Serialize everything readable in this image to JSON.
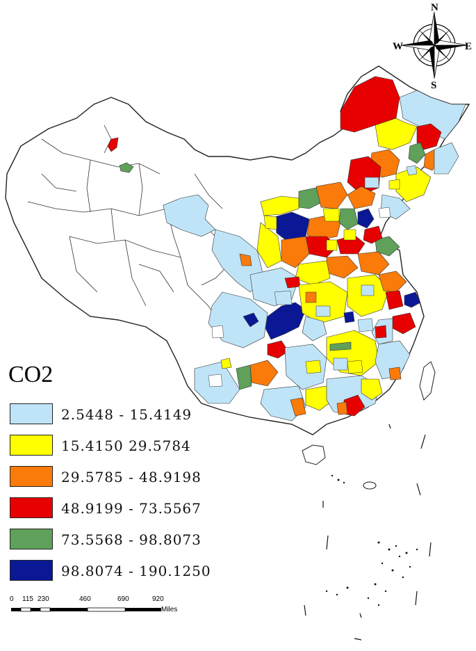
{
  "legend": {
    "title": "CO2",
    "classes": [
      {
        "range": "2.5448 - 15.4149",
        "color": "#bfe4f7"
      },
      {
        "range": "15.4150 29.5784",
        "color": "#ffff00"
      },
      {
        "range": "29.5785 - 48.9198",
        "color": "#fa7a0a"
      },
      {
        "range": "48.9199 - 73.5567",
        "color": "#e60000"
      },
      {
        "range": "73.5568 - 98.8073",
        "color": "#5fa05a"
      },
      {
        "range": "98.8074 - 190.1250",
        "color": "#0a1896"
      }
    ]
  },
  "compass": {
    "north": "N",
    "south": "S",
    "east": "E",
    "west": "W"
  },
  "scale": {
    "ticks": [
      "0",
      "115",
      "230",
      "460",
      "690",
      "920"
    ],
    "unit": "Miles"
  }
}
